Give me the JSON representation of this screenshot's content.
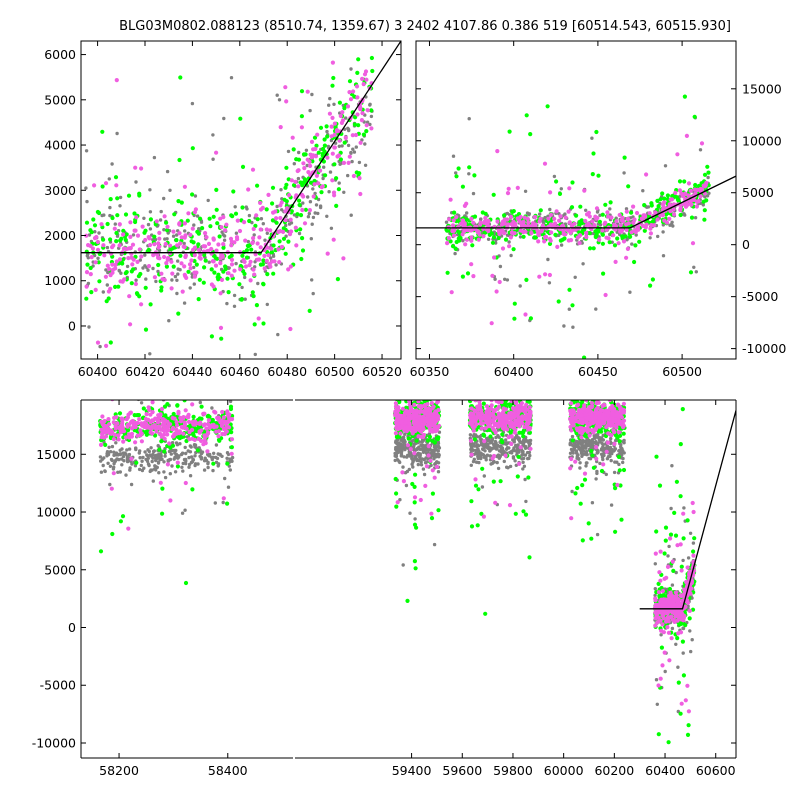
{
  "figure_title": "BLG03M0802.088123 (8510.74, 1359.67)   3 2402 4107.86 0.386 519 [60514.543, 60515.930]",
  "colors": {
    "pink": "#f05ee0",
    "green": "#00ff00",
    "gray": "#808080",
    "model": "#000000",
    "axes": "#000000"
  },
  "chart_data": [
    {
      "id": "top-left",
      "type": "scatter",
      "title": "",
      "xlabel": "",
      "ylabel": "",
      "xlim": [
        60393,
        60528
      ],
      "ylim": [
        -730,
        6300
      ],
      "xticks": [
        60400,
        60420,
        60440,
        60460,
        60480,
        60500,
        60520
      ],
      "yticks": [
        0,
        1000,
        2000,
        3000,
        4000,
        5000,
        6000
      ],
      "ytick_side": "left",
      "series": [
        {
          "color": "gray",
          "x_range": [
            60395,
            60516
          ],
          "baseline": 1700,
          "spread": 900,
          "outlier_spread": 2200
        },
        {
          "color": "green",
          "x_range": [
            60395,
            60516
          ],
          "baseline": 1600,
          "spread": 1000,
          "outlier_spread": 2600
        },
        {
          "color": "pink",
          "x_range": [
            60395,
            60516
          ],
          "baseline": 1600,
          "spread": 800,
          "outlier_spread": 1800
        }
      ],
      "model": {
        "x": [
          60393,
          60469,
          60528
        ],
        "y": [
          1620,
          1620,
          6300
        ]
      }
    },
    {
      "id": "top-right",
      "type": "scatter",
      "title": "",
      "xlabel": "",
      "ylabel": "",
      "xlim": [
        60342,
        60532
      ],
      "ylim": [
        -11000,
        19600
      ],
      "xticks": [
        60350,
        60400,
        60450,
        60500
      ],
      "yticks": [
        -10000,
        -5000,
        0,
        5000,
        10000,
        15000
      ],
      "ytick_side": "right",
      "series": [
        {
          "color": "gray",
          "x_range": [
            60360,
            60516
          ],
          "baseline": 1700,
          "spread": 1400,
          "outlier_spread": 4500
        },
        {
          "color": "green",
          "x_range": [
            60360,
            60516
          ],
          "baseline": 1600,
          "spread": 1500,
          "outlier_spread": 6000
        },
        {
          "color": "pink",
          "x_range": [
            60360,
            60516
          ],
          "baseline": 1600,
          "spread": 1100,
          "outlier_spread": 3500
        }
      ],
      "model": {
        "x": [
          60342,
          60469,
          60532
        ],
        "y": [
          1620,
          1620,
          6600
        ]
      }
    },
    {
      "id": "bottom",
      "type": "scatter",
      "title": "",
      "xlabel": "",
      "ylabel": "",
      "xlim": [
        58130,
        60680
      ],
      "ylim": [
        -11300,
        19700
      ],
      "axis_break": [
        58520,
        58940
      ],
      "axis_break_pixel_compression": true,
      "xticks": [
        58200,
        58400,
        59400,
        59600,
        59800,
        60000,
        60200,
        60400,
        60600
      ],
      "yticks": [
        -10000,
        -5000,
        0,
        5000,
        10000,
        15000
      ],
      "ytick_side": "left",
      "seasons": [
        {
          "x_range": [
            58165,
            58410
          ],
          "baseline": 200
        },
        {
          "x_range": [
            59335,
            59510
          ],
          "baseline": 800
        },
        {
          "x_range": [
            59630,
            59870
          ],
          "baseline": 1000
        },
        {
          "x_range": [
            60025,
            60240
          ],
          "baseline": 1000
        },
        {
          "x_range": [
            60360,
            60516
          ],
          "baseline": 1600
        }
      ],
      "series": [
        {
          "color": "gray",
          "spread": 1300,
          "outlier_spread": 5000
        },
        {
          "color": "green",
          "spread": 1400,
          "outlier_spread": 7000
        },
        {
          "color": "pink",
          "spread": 1100,
          "outlier_spread": 4500
        }
      ],
      "model": {
        "x": [
          60300,
          60469,
          60680
        ],
        "y": [
          1620,
          1620,
          18800
        ]
      }
    }
  ]
}
